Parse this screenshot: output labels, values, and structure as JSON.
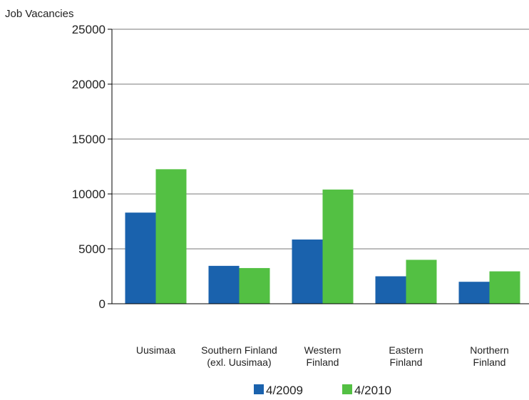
{
  "chart_data": {
    "type": "bar",
    "title": "",
    "ylabel": "Job Vacancies",
    "xlabel": "",
    "ylim": [
      0,
      25000
    ],
    "yticks": [
      0,
      5000,
      10000,
      15000,
      20000,
      25000
    ],
    "grid": true,
    "legend_position": "bottom",
    "categories": [
      [
        "Uusimaa"
      ],
      [
        "Southern Finland",
        "(exl. Uusimaa)"
      ],
      [
        "Western",
        "Finland"
      ],
      [
        "Eastern",
        "Finland"
      ],
      [
        "Northern",
        "Finland"
      ]
    ],
    "series": [
      {
        "name": "4/2009",
        "color": "#1a62ad",
        "values": [
          8300,
          3450,
          5850,
          2500,
          2000
        ]
      },
      {
        "name": "4/2010",
        "color": "#53c043",
        "values": [
          12250,
          3250,
          10400,
          4000,
          2950
        ]
      }
    ]
  }
}
